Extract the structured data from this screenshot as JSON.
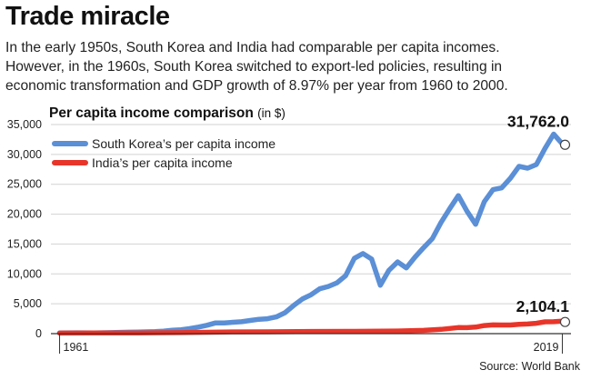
{
  "headline": "Trade miracle",
  "intro_lines": [
    "In the early 1950s, South Korea and India had comparable per capita incomes.",
    "However, in the 1960s, South Korea switched to export-led policies, resulting in",
    "economic transformation and GDP growth of 8.97% per year from 1960 to 2000."
  ],
  "source": "Source: World Bank",
  "colors": {
    "korea": "#5b8fd6",
    "india": "#e8352a",
    "grid": "#d2d2d2",
    "axis": "#333333"
  },
  "chart_data": {
    "type": "line",
    "title": "Per capita income comparison",
    "unit_label": "(in $)",
    "ylim": [
      0,
      35000
    ],
    "yticks": [
      0,
      5000,
      10000,
      15000,
      20000,
      25000,
      30000,
      35000
    ],
    "ytick_labels": [
      "0",
      "5,000",
      "10,000",
      "15,000",
      "20,000",
      "25,000",
      "30,000",
      "35,000"
    ],
    "xlim": [
      1960,
      2020
    ],
    "xtick_labels": [
      {
        "x": 1961,
        "label": "1961"
      },
      {
        "x": 2019,
        "label": "2019"
      }
    ],
    "grid": true,
    "legend_position": "top-left",
    "series": [
      {
        "name": "South Korea’s per capita income",
        "color": "#5b8fd6",
        "end_label": "31,762.0",
        "x": [
          1961,
          1963,
          1965,
          1967,
          1969,
          1970,
          1971,
          1972,
          1973,
          1974,
          1975,
          1976,
          1977,
          1978,
          1979,
          1980,
          1981,
          1982,
          1983,
          1984,
          1985,
          1986,
          1987,
          1988,
          1989,
          1990,
          1991,
          1992,
          1993,
          1994,
          1995,
          1996,
          1997,
          1998,
          1999,
          2000,
          2001,
          2002,
          2003,
          2004,
          2005,
          2006,
          2007,
          2008,
          2009,
          2010,
          2011,
          2012,
          2013,
          2014,
          2015,
          2016,
          2017,
          2018,
          2019
        ],
        "y": [
          100,
          140,
          110,
          160,
          250,
          280,
          300,
          330,
          420,
          570,
          650,
          840,
          1100,
          1400,
          1800,
          1800,
          1900,
          2000,
          2200,
          2400,
          2500,
          2800,
          3500,
          4700,
          5800,
          6500,
          7500,
          7900,
          8500,
          9700,
          12600,
          13400,
          12500,
          8100,
          10600,
          12000,
          11000,
          12800,
          14400,
          15900,
          18600,
          20900,
          23100,
          20500,
          18300,
          22100,
          24100,
          24400,
          26000,
          28000,
          27700,
          28300,
          31000,
          33400,
          31762
        ]
      },
      {
        "name": "India’s per capita income",
        "color": "#e8352a",
        "end_label": "2,104.1",
        "x": [
          1961,
          1965,
          1970,
          1975,
          1980,
          1985,
          1990,
          1995,
          2000,
          2003,
          2005,
          2007,
          2008,
          2009,
          2010,
          2011,
          2012,
          2013,
          2014,
          2015,
          2016,
          2017,
          2018,
          2019
        ],
        "y": [
          85,
          115,
          112,
          160,
          270,
          300,
          370,
          375,
          445,
          545,
          710,
          1020,
          1000,
          1100,
          1360,
          1460,
          1440,
          1450,
          1570,
          1610,
          1730,
          1980,
          2000,
          2104.1
        ]
      }
    ]
  }
}
